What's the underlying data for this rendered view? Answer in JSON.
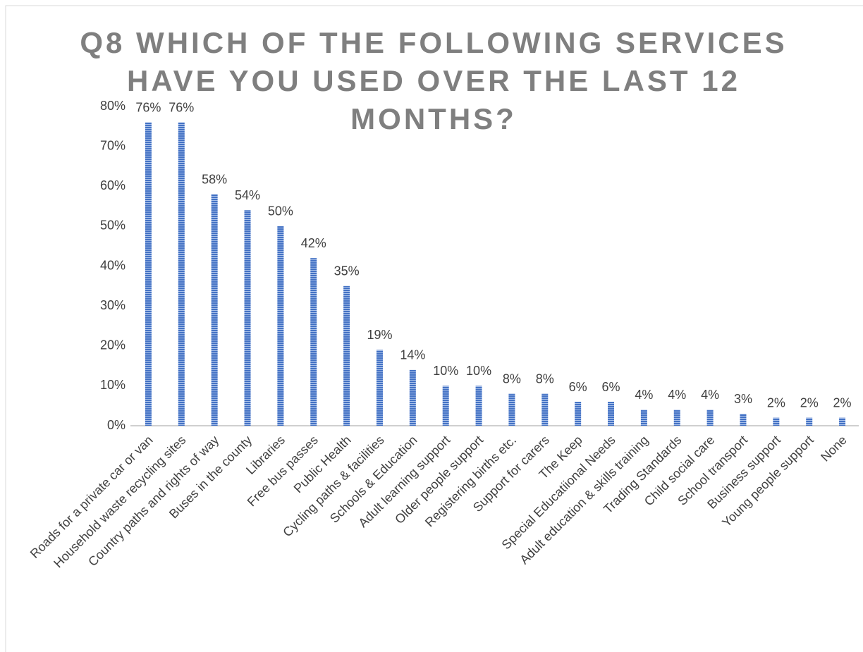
{
  "chart_data": {
    "type": "bar",
    "title": "Q8 WHICH OF THE FOLLOWING SERVICES HAVE YOU USED OVER THE LAST 12 MONTHS?",
    "categories": [
      "Roads for a private car or van",
      "Household waste recycling sites",
      "Country paths and rights of way",
      "Buses in the county",
      "Libraries",
      "Free bus passes",
      "Public Health",
      "Cycling paths & facilities",
      "Schools & Education",
      "Adult learning support",
      "Older people support",
      "Registering births etc.",
      "Support for carers",
      "The Keep",
      "Special Educatiional Needs",
      "Adult education & skills training",
      "Trading Standards",
      "Child social care",
      "School transport",
      "Business support",
      "Young people support",
      "None"
    ],
    "values": [
      76,
      76,
      58,
      54,
      50,
      42,
      35,
      19,
      14,
      10,
      10,
      8,
      8,
      6,
      6,
      4,
      4,
      4,
      3,
      2,
      2,
      2
    ],
    "value_labels": [
      "76%",
      "76%",
      "58%",
      "54%",
      "50%",
      "42%",
      "35%",
      "19%",
      "14%",
      "10%",
      "10%",
      "8%",
      "8%",
      "6%",
      "6%",
      "4%",
      "4%",
      "4%",
      "3%",
      "2%",
      "2%",
      "2%"
    ],
    "color": "#4472c4",
    "ylim": [
      0,
      80
    ],
    "yticks": [
      {
        "value": 0,
        "label": "0%"
      },
      {
        "value": 10,
        "label": "10%"
      },
      {
        "value": 20,
        "label": "20%"
      },
      {
        "value": 30,
        "label": "30%"
      },
      {
        "value": 40,
        "label": "40%"
      },
      {
        "value": 50,
        "label": "50%"
      },
      {
        "value": 60,
        "label": "60%"
      },
      {
        "value": 70,
        "label": "70%"
      },
      {
        "value": 80,
        "label": "80%"
      }
    ],
    "grid": false
  }
}
